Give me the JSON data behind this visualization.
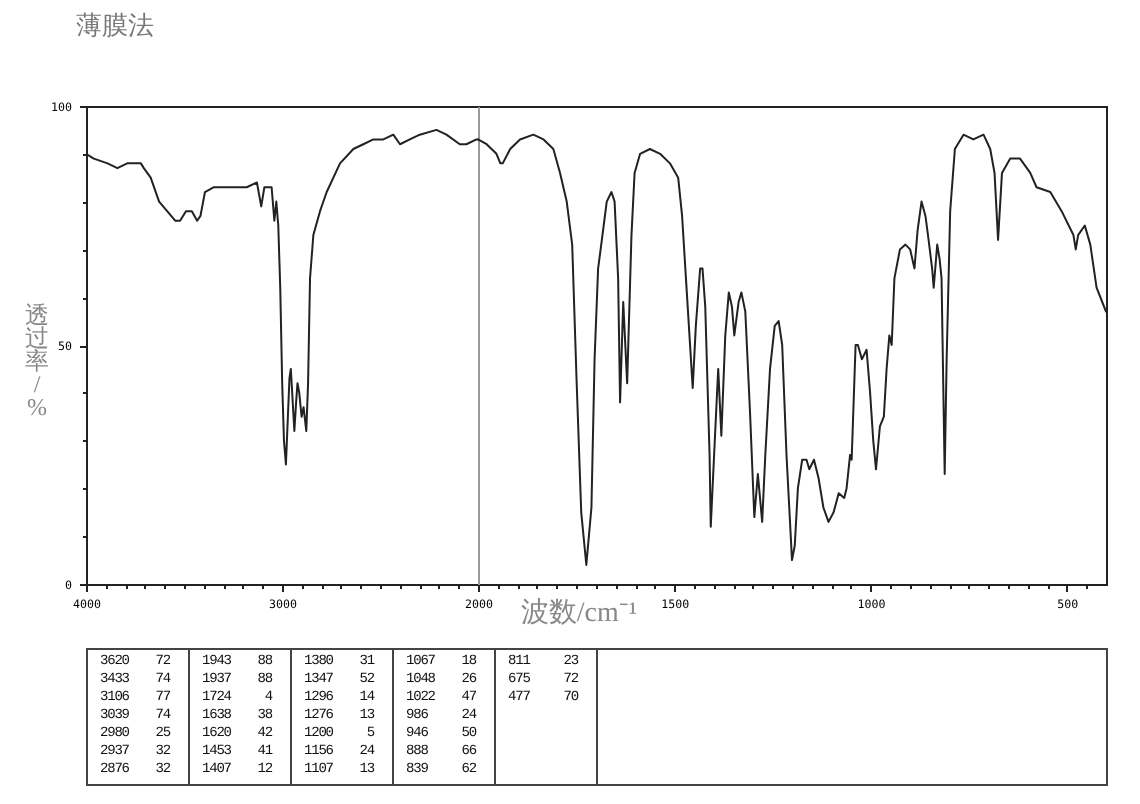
{
  "chart_data": [
    {
      "type": "line",
      "title": "薄膜法",
      "ylabel": "透过率/%",
      "x": [
        4000,
        3960,
        3890,
        3840,
        3790,
        3720,
        3705,
        3670,
        3627,
        3586,
        3545,
        3520,
        3490,
        3460,
        3433,
        3416,
        3393,
        3350,
        3280,
        3180,
        3128,
        3106,
        3090,
        3060,
        3053,
        3039,
        3029,
        3019,
        3009,
        2999,
        2990,
        2980,
        2970,
        2962,
        2955,
        2948,
        2937,
        2928,
        2921,
        2912,
        2900,
        2890,
        2876,
        2867,
        2857,
        2840,
        2806,
        2772,
        2704,
        2636,
        2585,
        2534,
        2483,
        2432,
        2398,
        2348,
        2297,
        2212,
        2161,
        2093,
        2059,
        2008,
        2000
      ],
      "series": [
        {
          "color": "#222222",
          "values": [
            90,
            89,
            88,
            87,
            88,
            88,
            87,
            85,
            80,
            78,
            76,
            76,
            78,
            78,
            76,
            77,
            82,
            83,
            83,
            83,
            84,
            79,
            83,
            83,
            83,
            76,
            80,
            75,
            62,
            42,
            30,
            25,
            35,
            43,
            45,
            40,
            32,
            38,
            42,
            40,
            35,
            37,
            32,
            42,
            64,
            73,
            78,
            82,
            88,
            91,
            92,
            93,
            93,
            94,
            92,
            93,
            94,
            95,
            94,
            92,
            92,
            93,
            93
          ]
        }
      ],
      "xlim": [
        4000,
        2000
      ],
      "ylim": [
        0,
        100
      ],
      "xticks": [
        4000,
        {
          "value": 3900,
          "label": null
        },
        {
          "value": 3800,
          "label": null
        },
        {
          "value": 3700,
          "label": null
        },
        {
          "value": 3600,
          "label": null
        },
        {
          "value": 3500,
          "label": null
        },
        {
          "value": 3400,
          "label": null
        },
        {
          "value": 3300,
          "label": null
        },
        {
          "value": 3200,
          "label": null
        },
        {
          "value": 3100,
          "label": null
        },
        3000,
        {
          "value": 2900,
          "label": null
        },
        {
          "value": 2800,
          "label": null
        },
        {
          "value": 2700,
          "label": null
        },
        {
          "value": 2600,
          "label": null
        },
        {
          "value": 2500,
          "label": null
        },
        {
          "value": 2400,
          "label": null
        },
        {
          "value": 2300,
          "label": null
        },
        {
          "value": 2200,
          "label": null
        },
        {
          "value": 2100,
          "label": null
        },
        2000
      ],
      "yticks": [
        0,
        {
          "value": 10,
          "label": null
        },
        {
          "value": 20,
          "label": null
        },
        {
          "value": 30,
          "label": null
        },
        {
          "value": 40,
          "label": null
        },
        50,
        {
          "value": 60,
          "label": null
        },
        {
          "value": 70,
          "label": null
        },
        {
          "value": 80,
          "label": null
        },
        {
          "value": 90,
          "label": null
        },
        100
      ],
      "annotations": [
        "3620 72",
        "3433 74",
        "3106 77",
        "3039 74",
        "2980 25",
        "2937 32",
        "2876 32",
        "1943 88",
        "1937 88",
        "1724 4",
        "1638 38",
        "1620 42",
        "1453 41",
        "1407 12",
        "1380 31",
        "1347 52",
        "1296 14",
        "1276 13",
        "1200 5",
        "1156 24",
        "1107 13",
        "1067 18",
        "1048 26",
        "1022 47",
        "986 24",
        "946 50",
        "888 66",
        "839 62",
        "811 23",
        "675 72",
        "477 70"
      ]
    },
    {
      "type": "line",
      "xlabel": "波数/cm⁻¹",
      "tick_labels": "x",
      "x": [
        2000,
        1978,
        1953,
        1943,
        1937,
        1918,
        1893,
        1859,
        1833,
        1808,
        1791,
        1774,
        1760,
        1749,
        1737,
        1724,
        1711,
        1703,
        1694,
        1686,
        1672,
        1660,
        1652,
        1643,
        1638,
        1630,
        1620,
        1609,
        1601,
        1587,
        1562,
        1536,
        1511,
        1490,
        1480,
        1468,
        1453,
        1445,
        1434,
        1428,
        1421,
        1410,
        1407,
        1395,
        1388,
        1380,
        1370,
        1361,
        1353,
        1347,
        1336,
        1329,
        1319,
        1307,
        1296,
        1287,
        1276,
        1268,
        1256,
        1244,
        1234,
        1225,
        1214,
        1200,
        1193,
        1185,
        1174,
        1163,
        1156,
        1144,
        1132,
        1120,
        1107,
        1094,
        1081,
        1067,
        1061,
        1052,
        1048,
        1038,
        1032,
        1022,
        1010,
        1001,
        993,
        986,
        976,
        966,
        959,
        952,
        946,
        939,
        925,
        911,
        899,
        888,
        880,
        870,
        860,
        852,
        843,
        839,
        830,
        824,
        819,
        811,
        806,
        797,
        785,
        763,
        738,
        712,
        695,
        684,
        675,
        665,
        644,
        619,
        593,
        577,
        542,
        513,
        483,
        477,
        471,
        454,
        440,
        424,
        400
      ],
      "series": [
        {
          "color": "#222222",
          "values": [
            93,
            92,
            90,
            88,
            88,
            91,
            93,
            94,
            93,
            91,
            86,
            80,
            71,
            43,
            15,
            4,
            16,
            47,
            66,
            71,
            80,
            82,
            80,
            64,
            38,
            59,
            42,
            73,
            86,
            90,
            91,
            90,
            88,
            85,
            77,
            61,
            41,
            54,
            66,
            66,
            58,
            27,
            12,
            33,
            45,
            31,
            52,
            61,
            58,
            52,
            59,
            61,
            57,
            36,
            14,
            23,
            13,
            27,
            45,
            54,
            55,
            50,
            27,
            5,
            8,
            20,
            26,
            26,
            24,
            26,
            22,
            16,
            13,
            15,
            19,
            18,
            20,
            27,
            26,
            50,
            50,
            47,
            49,
            40,
            30,
            24,
            33,
            35,
            45,
            52,
            50,
            64,
            70,
            71,
            70,
            66,
            74,
            80,
            77,
            72,
            66,
            62,
            71,
            68,
            64,
            23,
            47,
            78,
            91,
            94,
            93,
            94,
            91,
            86,
            72,
            86,
            89,
            89,
            86,
            83,
            82,
            78,
            73,
            70,
            73,
            75,
            71,
            62,
            57
          ]
        }
      ],
      "xlim": [
        2000,
        400
      ],
      "ylim": [
        0,
        100
      ],
      "xticks": [
        {
          "value": 1950,
          "label": null
        },
        {
          "value": 1900,
          "label": null
        },
        {
          "value": 1850,
          "label": null
        },
        {
          "value": 1800,
          "label": null
        },
        {
          "value": 1750,
          "label": null
        },
        {
          "value": 1700,
          "label": null
        },
        {
          "value": 1650,
          "label": null
        },
        {
          "value": 1600,
          "label": null
        },
        {
          "value": 1550,
          "label": null
        },
        1500,
        {
          "value": 1450,
          "label": null
        },
        {
          "value": 1400,
          "label": null
        },
        {
          "value": 1350,
          "label": null
        },
        {
          "value": 1300,
          "label": null
        },
        {
          "value": 1250,
          "label": null
        },
        {
          "value": 1200,
          "label": null
        },
        {
          "value": 1150,
          "label": null
        },
        {
          "value": 1100,
          "label": null
        },
        {
          "value": 1050,
          "label": null
        },
        1000,
        {
          "value": 950,
          "label": null
        },
        {
          "value": 900,
          "label": null
        },
        {
          "value": 850,
          "label": null
        },
        {
          "value": 800,
          "label": null
        },
        {
          "value": 750,
          "label": null
        },
        {
          "value": 700,
          "label": null
        },
        {
          "value": 650,
          "label": null
        },
        {
          "value": 600,
          "label": null
        },
        {
          "value": 550,
          "label": null
        },
        500,
        {
          "value": 450,
          "label": null
        }
      ]
    }
  ]
}
